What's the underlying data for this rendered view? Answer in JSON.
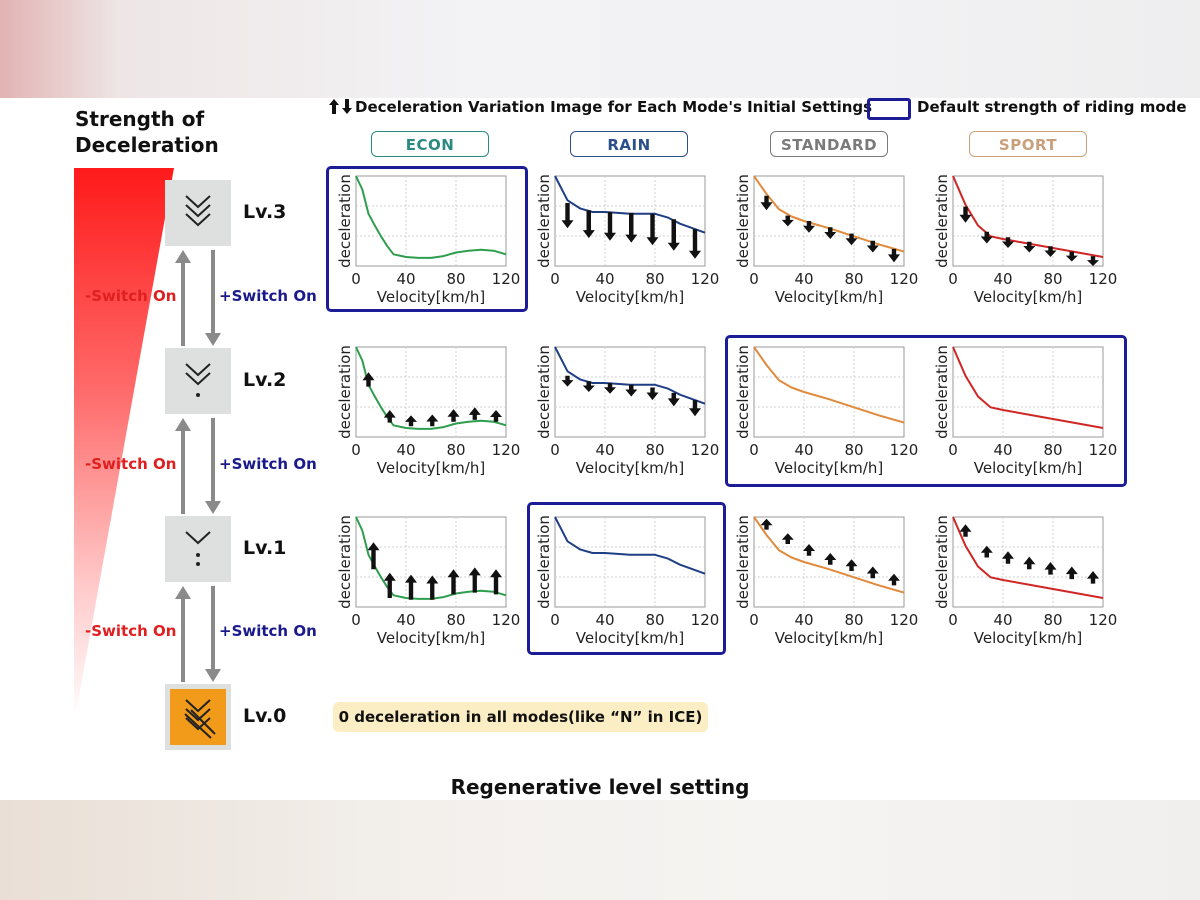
{
  "header": {
    "strength_line1": "Strength of",
    "strength_line2": "Deceleration",
    "legend_arrows_text": "Deceleration Variation Image for Each Mode's Initial Settings",
    "legend_default_text": "Default strength of riding mode",
    "default_frame_color": "#1c1c96"
  },
  "levels": [
    {
      "label": "Lv.3",
      "icon": "triple-chevron-icon"
    },
    {
      "label": "Lv.2",
      "icon": "double-chevron-dot-icon"
    },
    {
      "label": "Lv.1",
      "icon": "chevron-dots-icon"
    },
    {
      "label": "Lv.0",
      "icon": "neutral-coast-icon"
    }
  ],
  "switches": [
    {
      "minus": "-Switch On",
      "plus": "+Switch On"
    },
    {
      "minus": "-Switch On",
      "plus": "+Switch On"
    },
    {
      "minus": "-Switch On",
      "plus": "+Switch On"
    }
  ],
  "colors": {
    "minus": "#e02020",
    "plus": "#1a1a8c",
    "lv0_icon": "#f29a1a"
  },
  "modes": [
    {
      "name": "ECON",
      "color": "#2a8a82"
    },
    {
      "name": "RAIN",
      "color": "#2a4f8a"
    },
    {
      "name": "STANDARD",
      "color": "#7a7a7a"
    },
    {
      "name": "SPORT",
      "color": "#c8a07c"
    }
  ],
  "note": "0 deceleration in all modes(like “N” in ICE)",
  "footer": "Regenerative level setting",
  "chart_data": {
    "type": "line",
    "title": "Regenerative level setting",
    "xlabel": "Velocity[km/h]",
    "ylabel": "deceleration",
    "xlim": [
      0,
      120
    ],
    "ylim": [
      0,
      1
    ],
    "xticks": [
      0,
      40,
      80,
      120
    ],
    "grid": true,
    "rows": [
      "Lv.3",
      "Lv.2",
      "Lv.1"
    ],
    "columns": [
      "ECON",
      "RAIN",
      "STANDARD",
      "SPORT"
    ],
    "curves": {
      "ECON": {
        "color": "#2e9e4e",
        "x": [
          0,
          5,
          10,
          15,
          20,
          25,
          30,
          40,
          50,
          60,
          70,
          80,
          90,
          100,
          110,
          120
        ],
        "y": [
          1.0,
          0.85,
          0.58,
          0.45,
          0.33,
          0.22,
          0.13,
          0.1,
          0.09,
          0.09,
          0.11,
          0.15,
          0.17,
          0.18,
          0.17,
          0.13
        ]
      },
      "RAIN": {
        "color": "#1f3f85",
        "x": [
          0,
          10,
          20,
          30,
          40,
          60,
          80,
          90,
          100,
          110,
          120
        ],
        "y": [
          1.0,
          0.73,
          0.64,
          0.6,
          0.6,
          0.58,
          0.58,
          0.54,
          0.47,
          0.42,
          0.37
        ]
      },
      "STANDARD": {
        "color": "#e08a3c",
        "x": [
          0,
          10,
          20,
          30,
          40,
          60,
          80,
          100,
          120
        ],
        "y": [
          1.0,
          0.8,
          0.63,
          0.55,
          0.5,
          0.42,
          0.33,
          0.24,
          0.16
        ]
      },
      "SPORT": {
        "color": "#cf2626",
        "x": [
          0,
          10,
          20,
          30,
          40,
          60,
          80,
          100,
          120
        ],
        "y": [
          1.0,
          0.68,
          0.45,
          0.33,
          0.3,
          0.25,
          0.2,
          0.15,
          0.1
        ]
      }
    },
    "variation_arrows": {
      "Lv.3": {
        "ECON": null,
        "RAIN": [
          {
            "x": 10,
            "from": 0.7,
            "to": 0.42
          },
          {
            "x": 27,
            "from": 0.62,
            "to": 0.31
          },
          {
            "x": 44,
            "from": 0.6,
            "to": 0.28
          },
          {
            "x": 61,
            "from": 0.59,
            "to": 0.26
          },
          {
            "x": 78,
            "from": 0.58,
            "to": 0.23
          },
          {
            "x": 95,
            "from": 0.52,
            "to": 0.17
          },
          {
            "x": 112,
            "from": 0.41,
            "to": 0.08
          }
        ],
        "STANDARD": [
          {
            "x": 10,
            "from": 0.78,
            "to": 0.62
          },
          {
            "x": 27,
            "from": 0.56,
            "to": 0.44
          },
          {
            "x": 44,
            "from": 0.5,
            "to": 0.37
          },
          {
            "x": 61,
            "from": 0.43,
            "to": 0.3
          },
          {
            "x": 78,
            "from": 0.36,
            "to": 0.23
          },
          {
            "x": 95,
            "from": 0.28,
            "to": 0.15
          },
          {
            "x": 112,
            "from": 0.19,
            "to": 0.04
          }
        ],
        "SPORT": [
          {
            "x": 10,
            "from": 0.66,
            "to": 0.48
          },
          {
            "x": 27,
            "from": 0.38,
            "to": 0.25
          },
          {
            "x": 44,
            "from": 0.32,
            "to": 0.2
          },
          {
            "x": 61,
            "from": 0.27,
            "to": 0.15
          },
          {
            "x": 78,
            "from": 0.22,
            "to": 0.1
          },
          {
            "x": 95,
            "from": 0.16,
            "to": 0.05
          },
          {
            "x": 112,
            "from": 0.11,
            "to": 0.0
          }
        ]
      },
      "Lv.2": {
        "ECON": [
          {
            "x": 10,
            "from": 0.56,
            "to": 0.72
          },
          {
            "x": 27,
            "from": 0.16,
            "to": 0.3
          },
          {
            "x": 44,
            "from": 0.12,
            "to": 0.24
          },
          {
            "x": 61,
            "from": 0.12,
            "to": 0.25
          },
          {
            "x": 78,
            "from": 0.17,
            "to": 0.31
          },
          {
            "x": 95,
            "from": 0.19,
            "to": 0.33
          },
          {
            "x": 112,
            "from": 0.17,
            "to": 0.3
          }
        ],
        "RAIN": [
          {
            "x": 10,
            "from": 0.68,
            "to": 0.56
          },
          {
            "x": 27,
            "from": 0.62,
            "to": 0.5
          },
          {
            "x": 44,
            "from": 0.6,
            "to": 0.48
          },
          {
            "x": 61,
            "from": 0.58,
            "to": 0.45
          },
          {
            "x": 78,
            "from": 0.55,
            "to": 0.41
          },
          {
            "x": 95,
            "from": 0.49,
            "to": 0.34
          },
          {
            "x": 112,
            "from": 0.41,
            "to": 0.23
          }
        ],
        "STANDARD": null,
        "SPORT": null
      },
      "Lv.1": {
        "ECON": [
          {
            "x": 14,
            "from": 0.42,
            "to": 0.72
          },
          {
            "x": 27,
            "from": 0.1,
            "to": 0.38
          },
          {
            "x": 44,
            "from": 0.08,
            "to": 0.36
          },
          {
            "x": 61,
            "from": 0.08,
            "to": 0.35
          },
          {
            "x": 78,
            "from": 0.14,
            "to": 0.42
          },
          {
            "x": 95,
            "from": 0.16,
            "to": 0.44
          },
          {
            "x": 112,
            "from": 0.14,
            "to": 0.42
          }
        ],
        "RAIN": null,
        "STANDARD": [
          {
            "x": 10,
            "from": 0.86,
            "to": 0.98
          },
          {
            "x": 27,
            "from": 0.7,
            "to": 0.82
          },
          {
            "x": 44,
            "from": 0.57,
            "to": 0.7
          },
          {
            "x": 61,
            "from": 0.47,
            "to": 0.6
          },
          {
            "x": 78,
            "from": 0.4,
            "to": 0.53
          },
          {
            "x": 95,
            "from": 0.32,
            "to": 0.45
          },
          {
            "x": 112,
            "from": 0.24,
            "to": 0.37
          }
        ],
        "SPORT": [
          {
            "x": 10,
            "from": 0.78,
            "to": 0.92
          },
          {
            "x": 27,
            "from": 0.55,
            "to": 0.68
          },
          {
            "x": 44,
            "from": 0.48,
            "to": 0.62
          },
          {
            "x": 61,
            "from": 0.42,
            "to": 0.56
          },
          {
            "x": 78,
            "from": 0.36,
            "to": 0.5
          },
          {
            "x": 95,
            "from": 0.31,
            "to": 0.45
          },
          {
            "x": 112,
            "from": 0.26,
            "to": 0.4
          }
        ]
      }
    },
    "default_mode_per_level": {
      "Lv.3": [
        "ECON"
      ],
      "Lv.2": [
        "STANDARD",
        "SPORT"
      ],
      "Lv.1": [
        "RAIN"
      ]
    }
  }
}
